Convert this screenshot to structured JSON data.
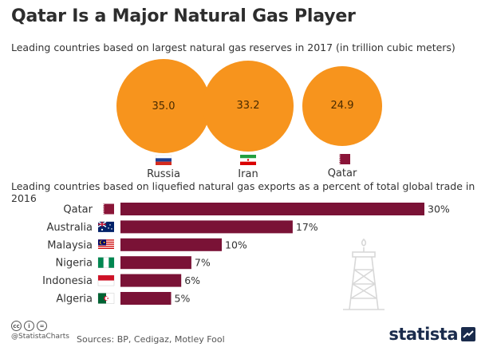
{
  "title": "Qatar Is a Major Natural Gas Player",
  "colors": {
    "bubble": "#f7941d",
    "bar": "#7a1236",
    "text": "#333333"
  },
  "chart_data": [
    {
      "type": "scatter",
      "subtitle": "Leading countries based on largest natural gas reserves in 2017 (in trillion cubic meters)",
      "categories": [
        "Russia",
        "Iran",
        "Qatar"
      ],
      "values": [
        35.0,
        33.2,
        24.9
      ],
      "value_labels": [
        "35.0",
        "33.2",
        "24.9"
      ],
      "flags": [
        "russia-flag-icon",
        "iran-flag-icon",
        "qatar-flag-icon"
      ]
    },
    {
      "type": "bar",
      "subtitle": "Leading countries based on liquefied natural gas exports as a percent of total global trade in 2016",
      "categories": [
        "Qatar",
        "Australia",
        "Malaysia",
        "Nigeria",
        "Indonesia",
        "Algeria"
      ],
      "values": [
        30,
        17,
        10,
        7,
        6,
        5
      ],
      "value_labels": [
        "30%",
        "17%",
        "10%",
        "7%",
        "6%",
        "5%"
      ],
      "flags": [
        "qatar-flag-icon",
        "australia-flag-icon",
        "malaysia-flag-icon",
        "nigeria-flag-icon",
        "indonesia-flag-icon",
        "algeria-flag-icon"
      ],
      "xlim": [
        0,
        30
      ]
    }
  ],
  "footer": {
    "handle": "@StatistaCharts",
    "sources": "Sources: BP, Cedigaz, Motley Fool",
    "logo": "statista",
    "cc_icons": [
      "cc",
      "i",
      "="
    ]
  }
}
